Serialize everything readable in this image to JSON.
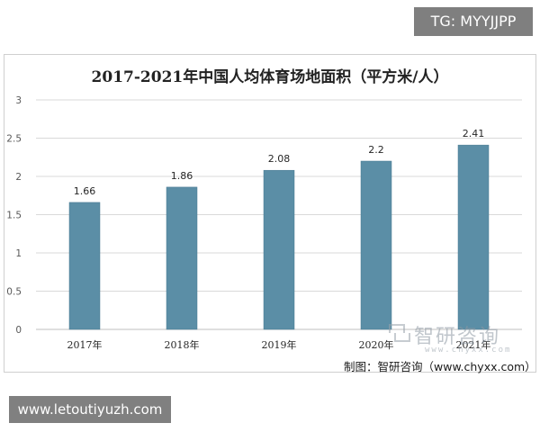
{
  "tg_badge": "TG: MYYJJPP",
  "url_badge": "www.letoutiyuzh.com",
  "credit": "制图：智研咨询（www.chyxx.com）",
  "watermark": {
    "brand": "智研咨询",
    "url": "www.chyxx.com",
    "logo": "chyxx-logo-icon"
  },
  "colors": {
    "bar": "#5b8ea6",
    "bar_edge": "#4a7a91",
    "grid": "#d9d9d9",
    "axis_text": "#595959"
  },
  "chart_data": {
    "type": "bar",
    "title": "2017-2021年中国人均体育场地面积（平方米/人）",
    "xlabel": "",
    "ylabel": "",
    "categories": [
      "2017年",
      "2018年",
      "2019年",
      "2020年",
      "2021年"
    ],
    "values": [
      1.66,
      1.86,
      2.08,
      2.2,
      2.41
    ],
    "value_labels": [
      "1.66",
      "1.86",
      "2.08",
      "2.2",
      "2.41"
    ],
    "ylim": [
      0,
      3
    ],
    "yticks": [
      "0",
      "0.5",
      "1",
      "1.5",
      "2",
      "2.5",
      "3"
    ],
    "grid": true,
    "legend": "none"
  }
}
